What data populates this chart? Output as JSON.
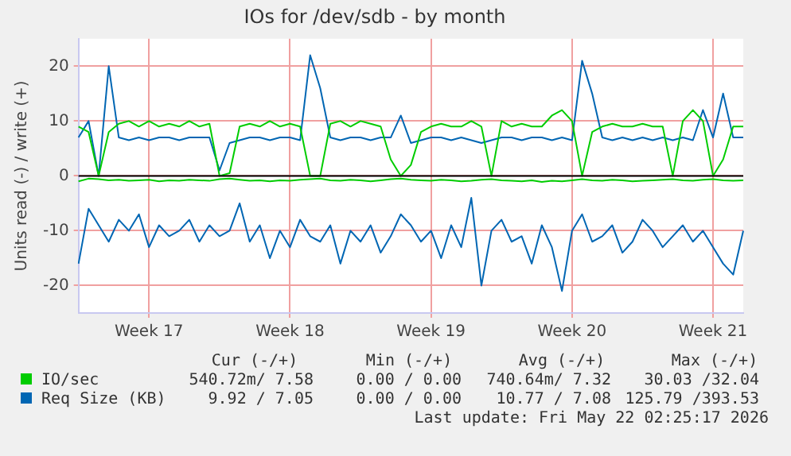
{
  "chart_data": {
    "type": "line",
    "title": "IOs for /dev/sdb - by month",
    "ylabel": "Units read (-) / write (+)",
    "categories": [
      null,
      null,
      null,
      null,
      null,
      null,
      null,
      "Week 17",
      null,
      null,
      null,
      null,
      null,
      null,
      null,
      null,
      null,
      null,
      null,
      null,
      null,
      "Week 18",
      null,
      null,
      null,
      null,
      null,
      null,
      null,
      null,
      null,
      null,
      null,
      null,
      null,
      "Week 19",
      null,
      null,
      null,
      null,
      null,
      null,
      null,
      null,
      null,
      null,
      null,
      null,
      null,
      "Week 20",
      null,
      null,
      null,
      null,
      null,
      null,
      null,
      null,
      null,
      null,
      null,
      null,
      null,
      "Week 21",
      null,
      null,
      null
    ],
    "series": [
      {
        "name": "IO/sec",
        "color": "#00cc00",
        "values": [
          9,
          8,
          0,
          8,
          9.5,
          10,
          9,
          10,
          9,
          9.5,
          9,
          10,
          9,
          9.5,
          0,
          0.5,
          9,
          9.5,
          9,
          10,
          9,
          9.5,
          9,
          0,
          0,
          9.5,
          10,
          9,
          10,
          9.5,
          9,
          3,
          0,
          2,
          8,
          9,
          9.5,
          9,
          9,
          10,
          9,
          0,
          10,
          9,
          9.5,
          9,
          9,
          11,
          12,
          10,
          0,
          8,
          9,
          9.5,
          9,
          9,
          9.5,
          9,
          9,
          0,
          10,
          12,
          10,
          0,
          3,
          9,
          9
        ]
      },
      {
        "color": "#00cc00",
        "values": [
          -1,
          -0.5,
          -0.6,
          -0.8,
          -0.7,
          -0.9,
          -0.8,
          -0.7,
          -1,
          -0.8,
          -0.9,
          -0.7,
          -0.8,
          -0.9,
          -0.6,
          -0.5,
          -0.7,
          -0.9,
          -0.8,
          -1,
          -0.8,
          -0.9,
          -0.7,
          -0.6,
          -0.5,
          -0.8,
          -0.9,
          -0.7,
          -0.8,
          -1,
          -0.8,
          -0.6,
          -0.5,
          -0.7,
          -0.8,
          -0.9,
          -0.7,
          -0.8,
          -1,
          -0.9,
          -0.7,
          -0.6,
          -0.8,
          -0.9,
          -1,
          -0.8,
          -1.1,
          -0.9,
          -1,
          -0.8,
          -0.6,
          -0.8,
          -0.9,
          -0.7,
          -0.8,
          -1,
          -0.9,
          -0.8,
          -0.7,
          -0.6,
          -0.8,
          -0.9,
          -0.7,
          -0.6,
          -0.8,
          -0.9,
          -0.8
        ]
      },
      {
        "name": "Req Size (KB)",
        "color": "#0066b3",
        "values": [
          7,
          10,
          0,
          20,
          7,
          6.5,
          7,
          6.5,
          7,
          7,
          6.5,
          7,
          7,
          7,
          1,
          6,
          6.5,
          7,
          7,
          6.5,
          7,
          7,
          6.5,
          22,
          16,
          7,
          6.5,
          7,
          7,
          6.5,
          7,
          7,
          11,
          6,
          6.5,
          7,
          7,
          6.5,
          7,
          6.5,
          6,
          6.5,
          7,
          7,
          6.5,
          7,
          7,
          6.5,
          7,
          6.5,
          21,
          15,
          7,
          6.5,
          7,
          6.5,
          7,
          6.5,
          7,
          6.5,
          7,
          6.5,
          12,
          7,
          15,
          7,
          7
        ]
      },
      {
        "color": "#0066b3",
        "values": [
          -16,
          -6,
          -9,
          -12,
          -8,
          -10,
          -7,
          -13,
          -9,
          -11,
          -10,
          -8,
          -12,
          -9,
          -11,
          -10,
          -5,
          -12,
          -9,
          -15,
          -10,
          -13,
          -8,
          -11,
          -12,
          -9,
          -16,
          -10,
          -12,
          -9,
          -14,
          -11,
          -7,
          -9,
          -12,
          -10,
          -15,
          -9,
          -13,
          -4,
          -20,
          -10,
          -8,
          -12,
          -11,
          -16,
          -9,
          -13,
          -21,
          -10,
          -7,
          -12,
          -11,
          -9,
          -14,
          -12,
          -8,
          -10,
          -13,
          -11,
          -9,
          -12,
          -10,
          -13,
          -16,
          -18,
          -10
        ]
      }
    ],
    "ylim": [
      -25,
      25
    ],
    "yticks": [
      -20,
      -10,
      0,
      10,
      20
    ],
    "ref_lines": [
      {
        "axis": "y",
        "value": 0,
        "color": "#000000"
      }
    ],
    "grid": true,
    "legend": "bottom left",
    "marker": "none",
    "line_style": "solid",
    "annotations": [
      "Cur (-/+)",
      "Min (-/+)",
      "Avg (-/+)",
      "Max (-/+)",
      "540.72m/ 7.58",
      "0.00 / 0.00",
      "740.64m/ 7.32",
      "30.03 /32.04",
      "9.92 / 7.05",
      "0.00 / 0.00",
      "10.77 / 7.08",
      "125.79 /393.53",
      "Last update: Fri May 22 02:25:17 2026"
    ]
  }
}
